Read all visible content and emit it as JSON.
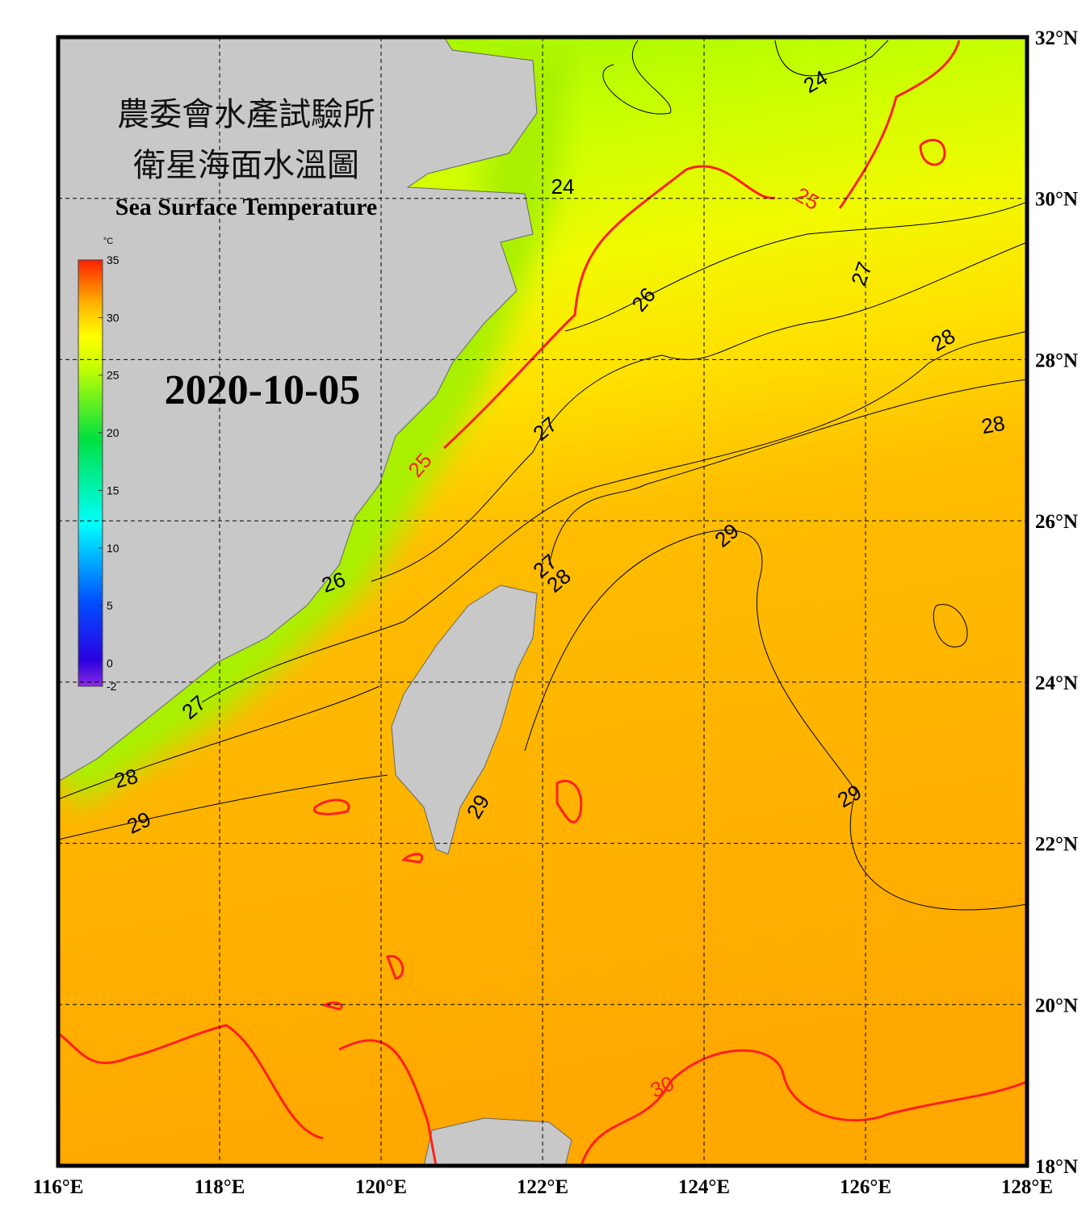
{
  "title_zh_1": "農委會水產試驗所",
  "title_zh_2": "衛星海面水溫圖",
  "title_en": "Sea Surface Temperature",
  "date": "2020-10-05",
  "colorbar": {
    "unit": "°C",
    "range": [
      -2,
      35
    ],
    "ticks": [
      35,
      30,
      25,
      20,
      15,
      10,
      5,
      0,
      -2
    ]
  },
  "map": {
    "xlim": [
      116,
      128
    ],
    "ylim": [
      18,
      32
    ],
    "lon_ticks": [
      {
        "value": 116,
        "label": "116°E"
      },
      {
        "value": 118,
        "label": "118°E"
      },
      {
        "value": 120,
        "label": "120°E"
      },
      {
        "value": 122,
        "label": "122°E"
      },
      {
        "value": 124,
        "label": "124°E"
      },
      {
        "value": 126,
        "label": "126°E"
      },
      {
        "value": 128,
        "label": "128°E"
      }
    ],
    "lat_ticks": [
      {
        "value": 18,
        "label": "18°N"
      },
      {
        "value": 20,
        "label": "20°N"
      },
      {
        "value": 22,
        "label": "22°N"
      },
      {
        "value": 24,
        "label": "24°N"
      },
      {
        "value": 26,
        "label": "26°N"
      },
      {
        "value": 28,
        "label": "28°N"
      },
      {
        "value": 30,
        "label": "30°N"
      },
      {
        "value": 32,
        "label": "32°N"
      }
    ],
    "contour_labels": [
      24,
      24,
      25,
      25,
      26,
      26,
      27,
      27,
      27,
      27,
      28,
      28,
      28,
      28,
      29,
      29,
      29,
      29,
      30
    ]
  }
}
